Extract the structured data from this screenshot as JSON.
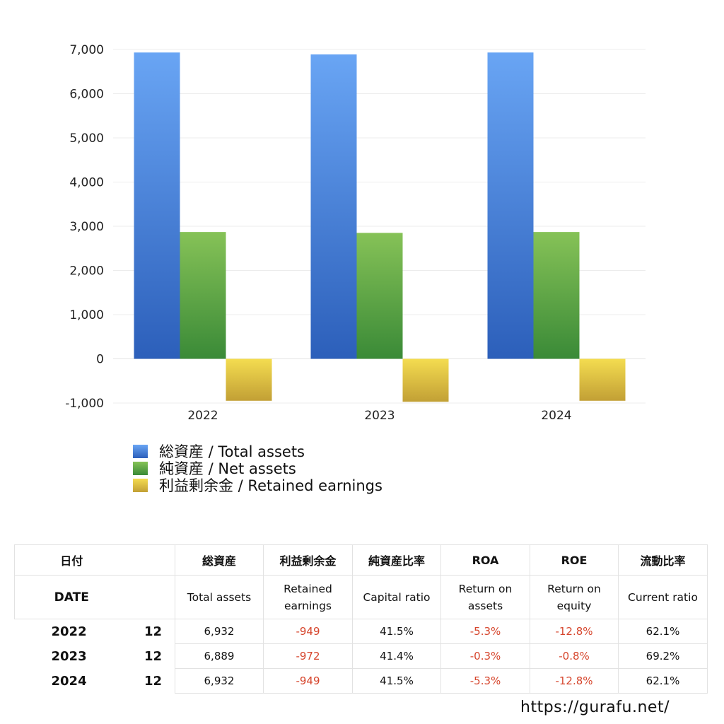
{
  "chart_data": {
    "type": "bar",
    "categories": [
      "2022",
      "2023",
      "2024"
    ],
    "series": [
      {
        "name": "総資産 / Total assets",
        "values": [
          6932,
          6889,
          6932
        ],
        "color": "#3f7fdc"
      },
      {
        "name": "純資産 / Net assets",
        "values": [
          2870,
          2850,
          2870
        ],
        "color": "#5faa48"
      },
      {
        "name": "利益剰余金 / Retained earnings",
        "values": [
          -949,
          -972,
          -949
        ],
        "color": "#e0c23c"
      }
    ],
    "ylim": [
      -1000,
      7000
    ],
    "yticks": [
      "-1,000",
      "0",
      "1,000",
      "2,000",
      "3,000",
      "4,000",
      "5,000",
      "6,000",
      "7,000"
    ],
    "grid": true,
    "legend": "bottom-left"
  },
  "table": {
    "header_jp": [
      "日付",
      "総資産",
      "利益剰余金",
      "純資産比率",
      "ROA",
      "ROE",
      "流動比率"
    ],
    "header_en": [
      "DATE",
      "Total assets",
      "Retained earnings",
      "Capital ratio",
      "Return on assets",
      "Return on equity",
      "Current ratio"
    ],
    "rows": [
      {
        "year": "2022",
        "month": "12",
        "total": "6,932",
        "retained": "-949",
        "capital": "41.5%",
        "roa": "-5.3%",
        "roe": "-12.8%",
        "current": "62.1%"
      },
      {
        "year": "2023",
        "month": "12",
        "total": "6,889",
        "retained": "-972",
        "capital": "41.4%",
        "roa": "-0.3%",
        "roe": "-0.8%",
        "current": "69.2%"
      },
      {
        "year": "2024",
        "month": "12",
        "total": "6,932",
        "retained": "-949",
        "capital": "41.5%",
        "roa": "-5.3%",
        "roe": "-12.8%",
        "current": "62.1%"
      }
    ]
  },
  "footer": {
    "site": "https://gurafu.net/"
  }
}
